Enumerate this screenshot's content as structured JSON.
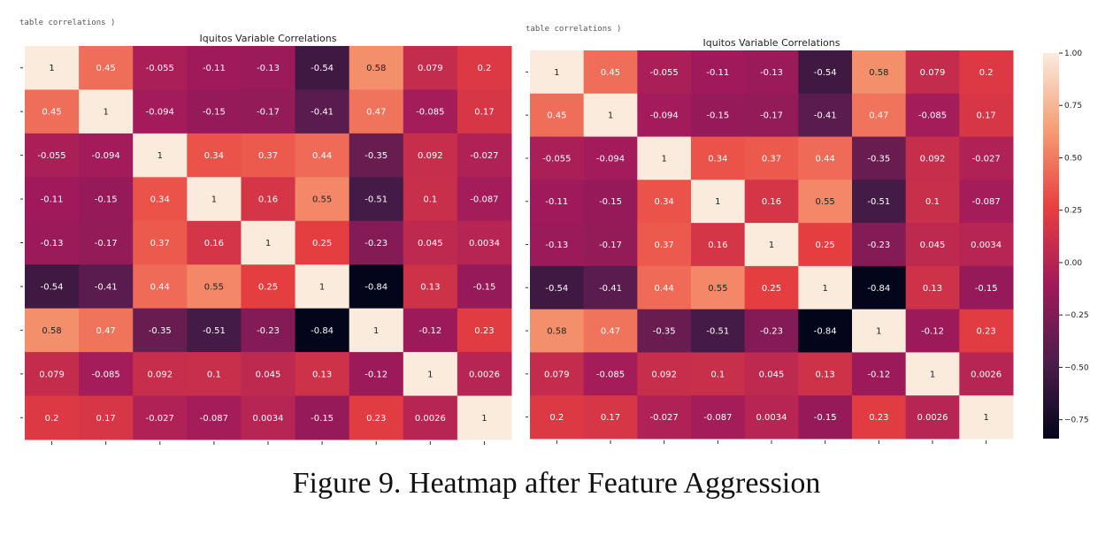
{
  "figure": {
    "caption": "Figure 9. Heatmap after Feature Aggression",
    "cropped_text": "table correlations )"
  },
  "colormap": {
    "name": "rocket",
    "stops": [
      "#03051a",
      "#4c1d4b",
      "#a11a5b",
      "#e83f3f",
      "#f69c73",
      "#faebdd"
    ]
  },
  "chart_data": [
    {
      "type": "heatmap",
      "title": "Iquitos Variable Correlations",
      "vmin": -0.84,
      "vmax": 1.0,
      "values": [
        [
          "1",
          "0.45",
          "-0.055",
          "-0.11",
          "-0.13",
          "-0.54",
          "0.58",
          "0.079",
          "0.2"
        ],
        [
          "0.45",
          "1",
          "-0.094",
          "-0.15",
          "-0.17",
          "-0.41",
          "0.47",
          "-0.085",
          "0.17"
        ],
        [
          "-0.055",
          "-0.094",
          "1",
          "0.34",
          "0.37",
          "0.44",
          "-0.35",
          "0.092",
          "-0.027"
        ],
        [
          "-0.11",
          "-0.15",
          "0.34",
          "1",
          "0.16",
          "0.55",
          "-0.51",
          "0.1",
          "-0.087"
        ],
        [
          "-0.13",
          "-0.17",
          "0.37",
          "0.16",
          "1",
          "0.25",
          "-0.23",
          "0.045",
          "0.0034"
        ],
        [
          "-0.54",
          "-0.41",
          "0.44",
          "0.55",
          "0.25",
          "1",
          "-0.84",
          "0.13",
          "-0.15"
        ],
        [
          "0.58",
          "0.47",
          "-0.35",
          "-0.51",
          "-0.23",
          "-0.84",
          "1",
          "-0.12",
          "0.23"
        ],
        [
          "0.079",
          "-0.085",
          "0.092",
          "0.1",
          "0.045",
          "0.13",
          "-0.12",
          "1",
          "0.0026"
        ],
        [
          "0.2",
          "0.17",
          "-0.027",
          "-0.087",
          "0.0034",
          "-0.15",
          "0.23",
          "0.0026",
          "1"
        ]
      ],
      "colorbar": false
    },
    {
      "type": "heatmap",
      "title": "Iquitos Variable Correlations",
      "vmin": -0.84,
      "vmax": 1.0,
      "values": [
        [
          "1",
          "0.45",
          "-0.055",
          "-0.11",
          "-0.13",
          "-0.54",
          "0.58",
          "0.079",
          "0.2"
        ],
        [
          "0.45",
          "1",
          "-0.094",
          "-0.15",
          "-0.17",
          "-0.41",
          "0.47",
          "-0.085",
          "0.17"
        ],
        [
          "-0.055",
          "-0.094",
          "1",
          "0.34",
          "0.37",
          "0.44",
          "-0.35",
          "0.092",
          "-0.027"
        ],
        [
          "-0.11",
          "-0.15",
          "0.34",
          "1",
          "0.16",
          "0.55",
          "-0.51",
          "0.1",
          "-0.087"
        ],
        [
          "-0.13",
          "-0.17",
          "0.37",
          "0.16",
          "1",
          "0.25",
          "-0.23",
          "0.045",
          "0.0034"
        ],
        [
          "-0.54",
          "-0.41",
          "0.44",
          "0.55",
          "0.25",
          "1",
          "-0.84",
          "0.13",
          "-0.15"
        ],
        [
          "0.58",
          "0.47",
          "-0.35",
          "-0.51",
          "-0.23",
          "-0.84",
          "1",
          "-0.12",
          "0.23"
        ],
        [
          "0.079",
          "-0.085",
          "0.092",
          "0.1",
          "0.045",
          "0.13",
          "-0.12",
          "1",
          "0.0026"
        ],
        [
          "0.2",
          "0.17",
          "-0.027",
          "-0.087",
          "0.0034",
          "-0.15",
          "0.23",
          "0.0026",
          "1"
        ]
      ],
      "colorbar": true,
      "colorbar_ticks": [
        {
          "value": 1.0,
          "label": "1.00"
        },
        {
          "value": 0.75,
          "label": "0.75"
        },
        {
          "value": 0.5,
          "label": "0.50"
        },
        {
          "value": 0.25,
          "label": "0.25"
        },
        {
          "value": 0.0,
          "label": "0.00"
        },
        {
          "value": -0.25,
          "label": "−0.25"
        },
        {
          "value": -0.5,
          "label": "−0.50"
        },
        {
          "value": -0.75,
          "label": "−0.75"
        }
      ]
    }
  ]
}
